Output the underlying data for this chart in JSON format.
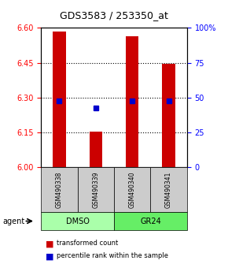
{
  "title": "GDS3583 / 253350_at",
  "samples": [
    "GSM490338",
    "GSM490339",
    "GSM490340",
    "GSM490341"
  ],
  "bar_bottom": 6.0,
  "bar_tops": [
    6.585,
    6.155,
    6.565,
    6.445
  ],
  "percentile_values": [
    6.285,
    6.255,
    6.285,
    6.285
  ],
  "ylim_left": [
    6.0,
    6.6
  ],
  "ylim_right": [
    0,
    100
  ],
  "yticks_left": [
    6.0,
    6.15,
    6.3,
    6.45,
    6.6
  ],
  "yticks_right": [
    0,
    25,
    50,
    75,
    100
  ],
  "bar_color": "#CC0000",
  "percentile_color": "#0000CC",
  "gridline_y": [
    6.15,
    6.3,
    6.45
  ],
  "legend_red_label": "transformed count",
  "legend_blue_label": "percentile rank within the sample",
  "agent_label": "agent",
  "background_color": "#ffffff",
  "plot_bg": "#ffffff",
  "sample_box_color": "#cccccc",
  "group_spans": [
    [
      0,
      2,
      "DMSO",
      "#aaffaa"
    ],
    [
      2,
      4,
      "GR24",
      "#66ee66"
    ]
  ],
  "bar_width": 0.35
}
